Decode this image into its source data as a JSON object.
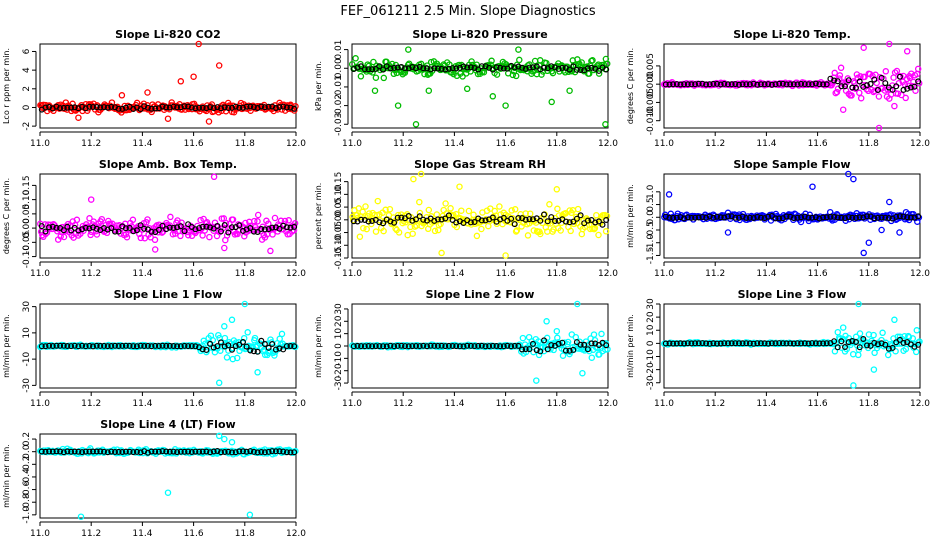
{
  "figure_title": "FEF_061211  2.5 Min. Slope Diagnostics",
  "colors": {
    "overlay": "#000000",
    "axis": "#000000"
  },
  "chart_data": [
    {
      "type": "scatter",
      "title": "Slope Li-820 CO2",
      "xlabel": "",
      "ylabel": "Lco r ppm per min.",
      "xlim": [
        11.0,
        12.0
      ],
      "xticks": [
        "11.0",
        "11.2",
        "11.4",
        "11.6",
        "11.8",
        "12.0"
      ],
      "ylim": [
        -2.2,
        6.8
      ],
      "yticks": [
        "-2",
        "0",
        "2",
        "4",
        "6"
      ],
      "series_color": "#ff0000",
      "noise": 0.45,
      "outliers": [
        [
          11.42,
          1.6
        ],
        [
          11.5,
          -1.2
        ],
        [
          11.55,
          2.8
        ],
        [
          11.6,
          3.3
        ],
        [
          11.62,
          6.8
        ],
        [
          11.66,
          -1.5
        ],
        [
          11.7,
          4.5
        ],
        [
          11.15,
          -1.1
        ],
        [
          11.32,
          1.3
        ]
      ]
    },
    {
      "type": "scatter",
      "title": "Slope Li-820 Pressure",
      "xlabel": "",
      "ylabel": "kPa per min.",
      "xlim": [
        11.0,
        12.0
      ],
      "xticks": [
        "11.0",
        "11.2",
        "11.4",
        "11.6",
        "11.8",
        "12.0"
      ],
      "ylim": [
        -0.032,
        0.013
      ],
      "yticks": [
        "-0.03",
        "-0.02",
        "-0.01",
        "0.00",
        "0.01"
      ],
      "series_color": "#00bb00",
      "noise": 0.004,
      "outliers": [
        [
          11.09,
          -0.012
        ],
        [
          11.18,
          -0.02
        ],
        [
          11.22,
          0.01
        ],
        [
          11.3,
          -0.012
        ],
        [
          11.45,
          -0.011
        ],
        [
          11.55,
          -0.015
        ],
        [
          11.6,
          -0.02
        ],
        [
          11.78,
          -0.018
        ],
        [
          11.85,
          -0.012
        ],
        [
          11.99,
          -0.03
        ],
        [
          11.25,
          -0.03
        ],
        [
          11.65,
          0.01
        ]
      ]
    },
    {
      "type": "scatter",
      "title": "Slope Li-820 Temp.",
      "xlabel": "",
      "ylabel": "degrees C per min.",
      "xlim": [
        11.0,
        12.0
      ],
      "xticks": [
        "11.0",
        "11.2",
        "11.4",
        "11.6",
        "11.8",
        "12.0"
      ],
      "ylim": [
        -0.012,
        0.011
      ],
      "yticks": [
        "-0.010",
        "-0.005",
        "0.000",
        "0.005"
      ],
      "series_color": "#ff00ff",
      "noise": 0.0004,
      "burst": [
        11.65,
        12.0,
        0.004
      ],
      "outliers": [
        [
          11.78,
          0.01
        ],
        [
          11.88,
          0.011
        ],
        [
          11.84,
          -0.012
        ],
        [
          11.7,
          -0.007
        ],
        [
          11.95,
          0.009
        ],
        [
          11.9,
          -0.006
        ]
      ]
    },
    {
      "type": "scatter",
      "title": "Slope Amb. Box Temp.",
      "xlabel": "",
      "ylabel": "degrees C per min.",
      "xlim": [
        11.0,
        12.0
      ],
      "xticks": [
        "11.0",
        "11.2",
        "11.4",
        "11.6",
        "11.8",
        "12.0"
      ],
      "ylim": [
        -0.105,
        0.19
      ],
      "yticks": [
        "-0.10",
        "-0.05",
        "0.00",
        "0.05",
        "0.10",
        "0.15"
      ],
      "series_color": "#ff00ff",
      "noise": 0.04,
      "outliers": [
        [
          11.68,
          0.18
        ],
        [
          11.72,
          -0.07
        ],
        [
          11.45,
          -0.075
        ],
        [
          11.2,
          0.1
        ],
        [
          11.9,
          -0.08
        ]
      ]
    },
    {
      "type": "scatter",
      "title": "Slope Gas Stream RH",
      "xlabel": "",
      "ylabel": "percent per min.",
      "xlim": [
        11.0,
        12.0
      ],
      "xticks": [
        "11.0",
        "11.2",
        "11.4",
        "11.6",
        "11.8",
        "12.0"
      ],
      "ylim": [
        -0.15,
        0.18
      ],
      "yticks": [
        "-0.15",
        "-0.10",
        "-0.05",
        "0.00",
        "0.05",
        "0.10",
        "0.15"
      ],
      "series_color": "#ffff00",
      "noise": 0.05,
      "outliers": [
        [
          11.24,
          0.16
        ],
        [
          11.27,
          0.18
        ],
        [
          11.35,
          -0.13
        ],
        [
          11.6,
          -0.14
        ],
        [
          11.42,
          0.13
        ],
        [
          11.8,
          0.12
        ]
      ]
    },
    {
      "type": "scatter",
      "title": "Slope Sample Flow",
      "xlabel": "",
      "ylabel": "ml/min per min.",
      "xlim": [
        11.0,
        12.0
      ],
      "xticks": [
        "11.0",
        "11.2",
        "11.4",
        "11.6",
        "11.8",
        "12.0"
      ],
      "ylim": [
        -1.6,
        1.7
      ],
      "yticks": [
        "-1.5",
        "-1.0",
        "-0.5",
        "0.0",
        "0.5",
        "1.0"
      ],
      "series_color": "#0000ff",
      "noise": 0.14,
      "outliers": [
        [
          11.02,
          0.9
        ],
        [
          11.25,
          -0.6
        ],
        [
          11.58,
          1.2
        ],
        [
          11.72,
          1.7
        ],
        [
          11.74,
          1.5
        ],
        [
          11.8,
          -1.0
        ],
        [
          11.85,
          -0.5
        ],
        [
          11.88,
          0.6
        ],
        [
          11.92,
          -0.6
        ],
        [
          11.78,
          -1.4
        ]
      ]
    },
    {
      "type": "scatter",
      "title": "Slope Line 1 Flow",
      "xlabel": "",
      "ylabel": "ml/min per min.",
      "xlim": [
        11.0,
        12.0
      ],
      "xticks": [
        "11.0",
        "11.2",
        "11.4",
        "11.6",
        "11.8",
        "12.0"
      ],
      "ylim": [
        -32,
        32
      ],
      "yticks": [
        "-30",
        "-10",
        "10",
        "30"
      ],
      "series_color": "#00ffff",
      "noise": 0.9,
      "burst": [
        11.62,
        11.95,
        9
      ],
      "outliers": [
        [
          11.7,
          -28
        ],
        [
          11.75,
          20
        ],
        [
          11.8,
          32
        ],
        [
          11.72,
          15
        ],
        [
          11.85,
          -20
        ]
      ]
    },
    {
      "type": "scatter",
      "title": "Slope Line 2 Flow",
      "xlabel": "",
      "ylabel": "ml/min per min.",
      "xlim": [
        11.0,
        12.0
      ],
      "xticks": [
        "11.0",
        "11.2",
        "11.4",
        "11.6",
        "11.8",
        "12.0"
      ],
      "ylim": [
        -34,
        34
      ],
      "yticks": [
        "-30",
        "-20",
        "-10",
        "0",
        "10",
        "20",
        "30"
      ],
      "series_color": "#00ffff",
      "noise": 0.8,
      "burst": [
        11.66,
        12.0,
        9
      ],
      "outliers": [
        [
          11.72,
          -28
        ],
        [
          11.76,
          20
        ],
        [
          11.88,
          34
        ],
        [
          11.9,
          -22
        ],
        [
          11.8,
          12
        ]
      ]
    },
    {
      "type": "scatter",
      "title": "Slope Line 3 Flow",
      "xlabel": "",
      "ylabel": "ml/min per min.",
      "xlim": [
        11.0,
        12.0
      ],
      "xticks": [
        "11.0",
        "11.2",
        "11.4",
        "11.6",
        "11.8",
        "12.0"
      ],
      "ylim": [
        -34,
        30
      ],
      "yticks": [
        "-30",
        "-20",
        "-10",
        "0",
        "10",
        "20",
        "30"
      ],
      "series_color": "#00ffff",
      "noise": 0.8,
      "burst": [
        11.66,
        12.0,
        8
      ],
      "outliers": [
        [
          11.74,
          -32
        ],
        [
          11.76,
          30
        ],
        [
          11.82,
          -20
        ],
        [
          11.9,
          18
        ],
        [
          11.7,
          12
        ]
      ]
    },
    {
      "type": "scatter",
      "title": "Slope Line 4 (LT) Flow",
      "xlabel": "",
      "ylabel": "ml/min per min.",
      "xlim": [
        11.0,
        12.0
      ],
      "xticks": [
        "11.0",
        "11.2",
        "11.4",
        "11.6",
        "11.8",
        "12.0"
      ],
      "ylim": [
        -1.05,
        0.28
      ],
      "yticks": [
        "-1.0",
        "-0.8",
        "-0.6",
        "-0.4",
        "-0.2",
        "0.0",
        "0.2"
      ],
      "series_color": "#00ffff",
      "noise": 0.035,
      "outliers": [
        [
          11.16,
          -1.03
        ],
        [
          11.5,
          -0.65
        ],
        [
          11.82,
          -1.0
        ],
        [
          11.7,
          0.25
        ],
        [
          11.72,
          0.2
        ],
        [
          11.75,
          0.15
        ]
      ]
    }
  ]
}
